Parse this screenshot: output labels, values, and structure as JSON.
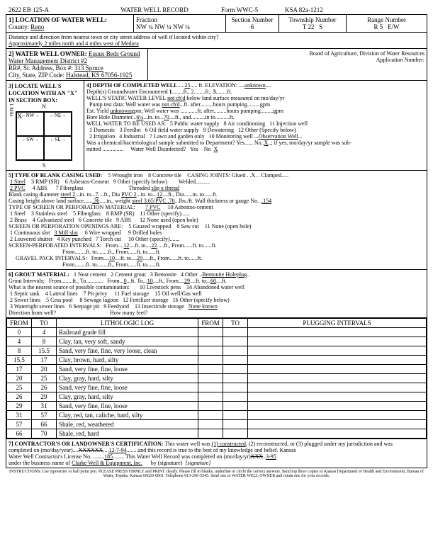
{
  "header": {
    "form_id": "2622 EB 125-A",
    "title": "WATER WELL RECORD",
    "form_no": "Form WWC-5",
    "ksa": "KSA 82a-1212"
  },
  "location": {
    "county": "Reno",
    "fraction": "NW ¼ NW ¼ NW ¼",
    "section": "6",
    "township": "22",
    "township_dir": "S",
    "range": "5",
    "range_dir": "W",
    "direction_desc": "Approximately 2 miles north and 4 miles west of Medora"
  },
  "owner": {
    "name": "Equus Beds Ground Water Management District #2",
    "address": "313 Spruce",
    "city_state_zip": "Halstead, KS  67056-1925"
  },
  "depth": {
    "completed": "25",
    "elevation": "unknown",
    "groundwater_depth": "1",
    "groundwater_ft": "3",
    "static_level": "not ch'd",
    "pump_test": "not ch'd",
    "est_yield": "unknown",
    "bore_dia": "6¼",
    "bore_to": "70",
    "use_other": "Observation Well",
    "chem_submitted": "No",
    "chem_x": "X",
    "disinfected_no": "X"
  },
  "casing": {
    "blank_dia": "steel 2",
    "blank_to": "7",
    "pvc_dia": "PVC 2",
    "pvc_to": "12",
    "height_above": ".36",
    "weight": "steel 3.65/PVC .70",
    "gauge": ".154",
    "joints": "slip x thread",
    "screen_from1": "12",
    "screen_to1": "22",
    "gravel_from1": "10",
    "gravel_to1": "29"
  },
  "grout": {
    "other": "Bentonite Holeplug",
    "from1": "0",
    "to1": "10",
    "from2": "29",
    "to2": "60",
    "contam_other": "None known"
  },
  "log": {
    "cols": [
      "FROM",
      "TO",
      "LITHOLOGIC LOG",
      "FROM",
      "TO",
      "PLUGGING INTERVALS"
    ],
    "rows": [
      [
        "0",
        "4",
        "Railroad grade fill",
        "",
        "",
        ""
      ],
      [
        "4",
        "8",
        "Clay, tan, very soft, sandy",
        "",
        "",
        ""
      ],
      [
        "8",
        "15.5",
        "Sand, very fine, fine, very loose, clean",
        "",
        "",
        ""
      ],
      [
        "15.5",
        "17",
        "Clay, brown, hard, silty",
        "",
        "",
        ""
      ],
      [
        "17",
        "20",
        "Sand, very fine, fine, loose",
        "",
        "",
        ""
      ],
      [
        "20",
        "25",
        "Clay, gray, hard, silty",
        "",
        "",
        ""
      ],
      [
        "25",
        "26",
        "Sand, very fine, fine, loose",
        "",
        "",
        ""
      ],
      [
        "26",
        "29",
        "Clay, gray, hard, silty",
        "",
        "",
        ""
      ],
      [
        "29",
        "31",
        "Sand, very fine, fine, loose",
        "",
        "",
        ""
      ],
      [
        "31",
        "57",
        "Clay, red, tan, caliche, hard, silty",
        "",
        "",
        ""
      ],
      [
        "57",
        "66",
        "Shale, red, weathered",
        "",
        "",
        ""
      ],
      [
        "66",
        "70",
        "Shale, red, hard",
        "",
        "",
        ""
      ]
    ]
  },
  "cert": {
    "date_completed": "12-7-94",
    "license": "185",
    "business": "Clarke Well & Equipment, Inc.",
    "sig_date": "3-95"
  }
}
